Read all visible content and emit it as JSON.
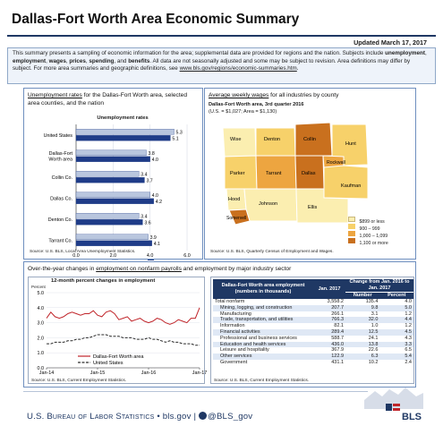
{
  "title": "Dallas-Fort Worth Area Economic Summary",
  "updated": "Updated March 17, 2017",
  "intro": {
    "part1": "This summary presents a sampling of economic information for the area; supplemental data are provided for regions and the nation. Subjects include ",
    "kw1": "unemployment",
    "sep1": ", ",
    "kw2": "employment",
    "sep2": ", ",
    "kw3": "wages",
    "sep3": ", ",
    "kw4": "prices",
    "sep4": ", ",
    "kw5": "spending",
    "sep5": ", and ",
    "kw6": "benefits",
    "part2": ". All data are not seasonally adjusted and some may be subject to revision. Area definitions may differ by subject. For more area summaries and geographic definitions, see ",
    "link": "www.bls.gov/regions/economic-summaries.htm",
    "part3": "."
  },
  "unemployment": {
    "heading_link": "Unemployment rates",
    "heading_rest": " for the Dallas-Fort Worth area, selected area counties, and the nation",
    "source": "Source: U.S. BLS, Local Area Unemployment Statistics.",
    "colors": {
      "jan16": "#b9c6de",
      "jan17": "#1f3c88"
    },
    "chart_data": {
      "type": "bar",
      "orientation": "horizontal",
      "title": "Unemployment rates",
      "categories": [
        "United States",
        "Dallas-Fort Worth area",
        "Collin Co.",
        "Dallas Co.",
        "Denton Co.",
        "Tarrant Co."
      ],
      "category_lines": [
        [
          "United States"
        ],
        [
          "Dallas-Fort",
          "Worth area"
        ],
        [
          "Collin Co."
        ],
        [
          "Dallas Co."
        ],
        [
          "Denton Co."
        ],
        [
          "Tarrant Co."
        ]
      ],
      "series": [
        {
          "name": "Jan-16",
          "values": [
            5.3,
            3.8,
            3.4,
            4.0,
            3.4,
            3.9
          ]
        },
        {
          "name": "Jan-17",
          "values": [
            5.1,
            4.0,
            3.7,
            4.2,
            3.6,
            4.1
          ]
        }
      ],
      "xlim": [
        0.0,
        6.0
      ],
      "xticks": [
        "0.0",
        "2.0",
        "4.0",
        "6.0"
      ],
      "legend_position": "bottom"
    }
  },
  "wages": {
    "heading_link": "Average weekly wages",
    "heading_rest": " for all industries by county",
    "map_title": "Dallas-Fort Worth area, 3rd quarter 2016",
    "map_subtitle": "(U.S. = $1,027; Area = $1,130)",
    "source": "Source: U.S. BLS, Quarterly Census of Employment and Wages.",
    "counties": [
      "Wise",
      "Denton",
      "Collin",
      "Hunt",
      "Parker",
      "Tarrant",
      "Dallas",
      "Rockwall",
      "Kaufman",
      "Hood",
      "Johnson",
      "Ellis",
      "Somervell"
    ],
    "legend": [
      {
        "label": "$899 or less",
        "color": "#fbeeb0"
      },
      {
        "label": "900 – 999",
        "color": "#f7d16a"
      },
      {
        "label": "1,000 – 1,099",
        "color": "#eda540"
      },
      {
        "label": "1,100 or more",
        "color": "#c9701e"
      }
    ]
  },
  "employment": {
    "heading_pre": "Over-the-year changes in ",
    "heading_link": "employment on nonfarm payrolls",
    "heading_rest": " and employment by major industry sector",
    "chart_source": "Source: U.S. BLS, Current Employment Statistics.",
    "table_source": "Source: U.S. BLS, Current Employment Statistics.",
    "chart_data": {
      "type": "line",
      "title": "12-month percent changes in employment",
      "ylabel": "Percent",
      "ylim": [
        0.0,
        5.0
      ],
      "yticks": [
        "0.0",
        "1.0",
        "2.0",
        "3.0",
        "4.0",
        "5.0"
      ],
      "x": [
        "Jan-14",
        "Feb-14",
        "Mar-14",
        "Apr-14",
        "May-14",
        "Jun-14",
        "Jul-14",
        "Aug-14",
        "Sep-14",
        "Oct-14",
        "Nov-14",
        "Dec-14",
        "Jan-15",
        "Feb-15",
        "Mar-15",
        "Apr-15",
        "May-15",
        "Jun-15",
        "Jul-15",
        "Aug-15",
        "Sep-15",
        "Oct-15",
        "Nov-15",
        "Dec-15",
        "Jan-16",
        "Feb-16",
        "Mar-16",
        "Apr-16",
        "May-16",
        "Jun-16",
        "Jul-16",
        "Aug-16",
        "Sep-16",
        "Oct-16",
        "Nov-16",
        "Dec-16",
        "Jan-17"
      ],
      "xticks": [
        "Jan-14",
        "Jan-15",
        "Jan-16",
        "Jan-17"
      ],
      "series": [
        {
          "name": "Dallas-Fort Worth area",
          "color": "#c0252a",
          "values": [
            3.3,
            3.7,
            3.4,
            3.3,
            3.4,
            3.6,
            3.7,
            3.6,
            3.5,
            3.6,
            3.6,
            3.8,
            3.5,
            3.4,
            3.7,
            3.8,
            3.6,
            3.2,
            3.3,
            3.4,
            3.1,
            3.2,
            3.3,
            3.1,
            3.0,
            3.1,
            3.3,
            3.2,
            3.0,
            2.9,
            3.0,
            3.2,
            3.1,
            3.0,
            3.3,
            3.3,
            4.0
          ]
        },
        {
          "name": "United States",
          "color": "#2a2a2a",
          "values": [
            1.6,
            1.6,
            1.7,
            1.7,
            1.7,
            1.8,
            1.8,
            1.9,
            1.9,
            2.0,
            2.0,
            2.1,
            2.2,
            2.2,
            2.2,
            2.1,
            2.1,
            2.1,
            2.0,
            2.0,
            2.0,
            1.9,
            1.9,
            1.9,
            2.0,
            1.9,
            1.9,
            1.8,
            1.7,
            1.8,
            1.7,
            1.7,
            1.6,
            1.6,
            1.6,
            1.5,
            1.5
          ]
        }
      ],
      "legend_position": "bottom"
    },
    "table": {
      "col_title": "Dallas-Fort Worth area employment (numbers in thousands)",
      "col_jan": "Jan. 2017",
      "col_change": "Change from Jan. 2016 to Jan. 2017",
      "col_number": "Number",
      "col_percent": "Percent",
      "rows": [
        {
          "name": "Total nonfarm",
          "jan": "3,558.2",
          "num": "135.4",
          "pct": "4.0"
        },
        {
          "name": "Mining, logging, and construction",
          "jan": "207.7",
          "num": "9.8",
          "pct": "5.0"
        },
        {
          "name": "Manufacturing",
          "jan": "266.1",
          "num": "3.1",
          "pct": "1.2"
        },
        {
          "name": "Trade, transportation, and utilities",
          "jan": "766.3",
          "num": "32.0",
          "pct": "4.4"
        },
        {
          "name": "Information",
          "jan": "82.1",
          "num": "1.0",
          "pct": "1.2"
        },
        {
          "name": "Financial activities",
          "jan": "289.4",
          "num": "12.5",
          "pct": "4.5"
        },
        {
          "name": "Professional and business services",
          "jan": "588.7",
          "num": "24.1",
          "pct": "4.3"
        },
        {
          "name": "Education and health services",
          "jan": "436.0",
          "num": "13.8",
          "pct": "3.3"
        },
        {
          "name": "Leisure and hospitality",
          "jan": "367.9",
          "num": "22.6",
          "pct": "6.5"
        },
        {
          "name": "Other services",
          "jan": "122.9",
          "num": "6.3",
          "pct": "5.4"
        },
        {
          "name": "Government",
          "jan": "431.1",
          "num": "10.2",
          "pct": "2.4"
        }
      ]
    }
  },
  "footer": {
    "agency": "U.S. Bureau of Labor Statistics",
    "sep1": " • ",
    "site": "bls.gov",
    "sep2": " | ",
    "handle": "@BLS_gov",
    "logo_text": "BLS"
  }
}
